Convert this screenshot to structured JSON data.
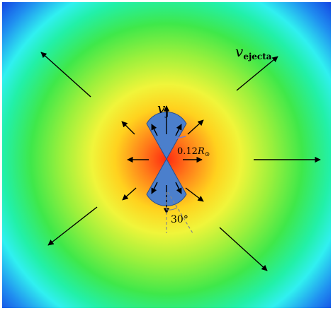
{
  "labels": {
    "ejecta_velocity": {
      "symbol": "v",
      "subscript": "ejecta"
    },
    "jet_velocity": {
      "symbol": "v",
      "subscript": "j"
    },
    "jet_radius": {
      "value": "0.12",
      "symbol": "R",
      "subscript": "⊙"
    },
    "opening_angle": "30°"
  }
}
